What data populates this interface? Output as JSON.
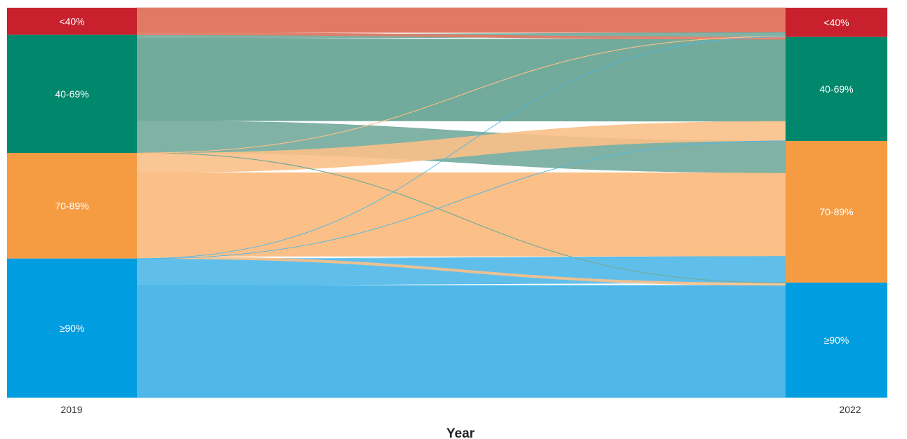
{
  "chart_data": {
    "type": "sankey",
    "xlabel": "Year",
    "columns": [
      "2019",
      "2022"
    ],
    "categories": [
      "<40%",
      "40-69%",
      "70-89%",
      "≥90%"
    ],
    "colors": {
      "<40%": "#c9202d",
      "40-69%": "#00876c",
      "70-89%": "#f59c43",
      "≥90%": "#009de0"
    },
    "link_colors": {
      "<40%": "#e07a64",
      "40-69%": "#72aa9c",
      "70-89%": "#fac088",
      "≥90%": "#4fb8e8"
    },
    "flows": [
      {
        "source": "<40%",
        "target": "<40%",
        "value": 32
      },
      {
        "source": "<40%",
        "target": "40-69%",
        "value": 3
      },
      {
        "source": "<40%",
        "target": "70-89%",
        "value": 0
      },
      {
        "source": "<40%",
        "target": "≥90%",
        "value": 0
      },
      {
        "source": "40-69%",
        "target": "<40%",
        "value": 5
      },
      {
        "source": "40-69%",
        "target": "40-69%",
        "value": 106
      },
      {
        "source": "40-69%",
        "target": "70-89%",
        "value": 41
      },
      {
        "source": "40-69%",
        "target": "≥90%",
        "value": 0.5
      },
      {
        "source": "70-89%",
        "target": "<40%",
        "value": 0.5
      },
      {
        "source": "70-89%",
        "target": "40-69%",
        "value": 25
      },
      {
        "source": "70-89%",
        "target": "70-89%",
        "value": 108
      },
      {
        "source": "70-89%",
        "target": "≥90%",
        "value": 3
      },
      {
        "source": "≥90%",
        "target": "<40%",
        "value": 0.3
      },
      {
        "source": "≥90%",
        "target": "40-69%",
        "value": 0.3
      },
      {
        "source": "≥90%",
        "target": "70-89%",
        "value": 34
      },
      {
        "source": "≥90%",
        "target": "≥90%",
        "value": 145
      }
    ]
  }
}
